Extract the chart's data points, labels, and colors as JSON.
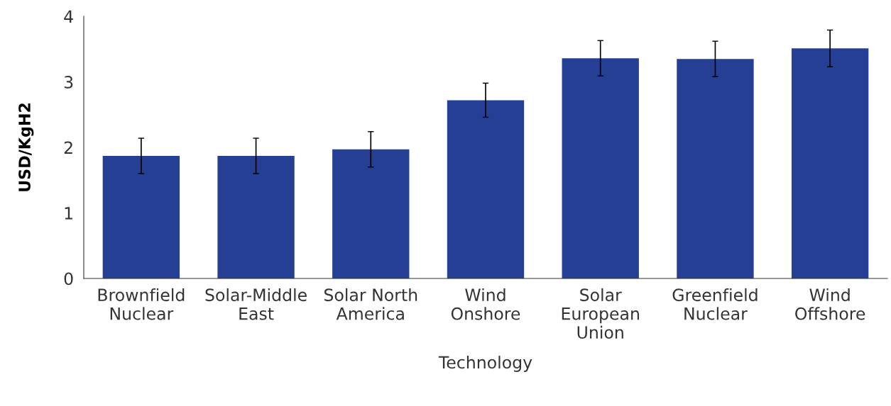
{
  "chart_data": {
    "type": "bar",
    "xlabel": "Technology",
    "ylabel": "USD/KgH2",
    "categories": [
      "Brownfield\nNuclear",
      "Solar-Middle\nEast",
      "Solar North\nAmerica",
      "Wind\nOnshore",
      "Solar\nEuropean\nUnion",
      "Greenfield\nNuclear",
      "Wind\nOffshore"
    ],
    "values": [
      1.87,
      1.87,
      1.97,
      2.72,
      3.36,
      3.35,
      3.51
    ],
    "errors": [
      0.27,
      0.27,
      0.27,
      0.26,
      0.27,
      0.27,
      0.28
    ],
    "color": "#243f94",
    "ylim": [
      0,
      4
    ],
    "yticks": [
      0,
      1,
      2,
      3,
      4
    ],
    "grid": false,
    "legend": false
  }
}
